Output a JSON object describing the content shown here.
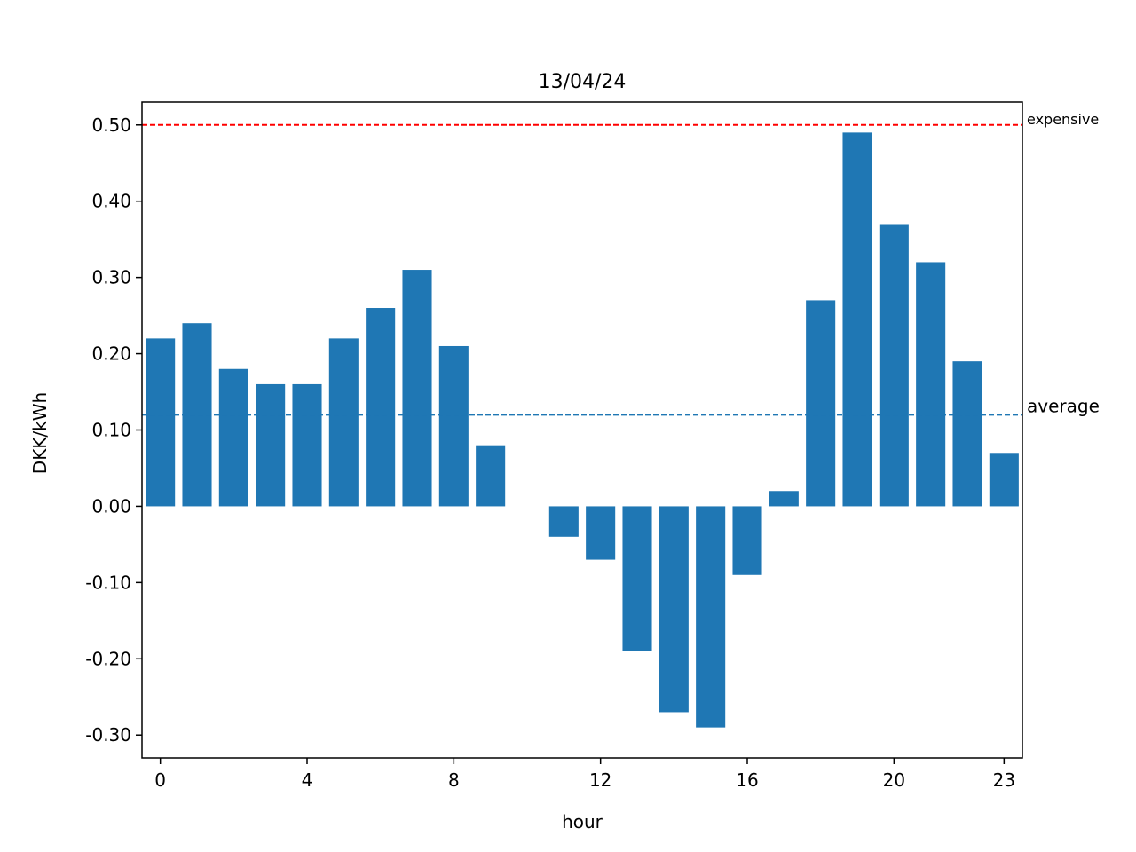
{
  "chart_data": {
    "type": "bar",
    "title": "13/04/24",
    "xlabel": "hour",
    "ylabel": "DKK/kWh",
    "x": [
      0,
      1,
      2,
      3,
      4,
      5,
      6,
      7,
      8,
      9,
      10,
      11,
      12,
      13,
      14,
      15,
      16,
      17,
      18,
      19,
      20,
      21,
      22,
      23
    ],
    "values": [
      0.22,
      0.24,
      0.18,
      0.16,
      0.16,
      0.22,
      0.26,
      0.31,
      0.21,
      0.08,
      0.0,
      -0.04,
      -0.07,
      -0.19,
      -0.27,
      -0.29,
      -0.09,
      0.02,
      0.27,
      0.49,
      0.37,
      0.32,
      0.19,
      0.07
    ],
    "xticks": [
      "0",
      "4",
      "8",
      "12",
      "16",
      "20",
      "23"
    ],
    "yticks": [
      "0.50",
      "0.40",
      "0.30",
      "0.20",
      "0.10",
      "0.00",
      "-0.10",
      "-0.20",
      "-0.30"
    ],
    "ylim": [
      -0.33,
      0.53
    ],
    "xlim": [
      -0.5,
      23.5
    ],
    "bar_color": "#1f77b4",
    "reference_lines": [
      {
        "label": "expensive",
        "value": 0.5,
        "color": "#ff0000",
        "style": "dashed"
      },
      {
        "label": "average",
        "value": 0.12,
        "color": "#1f77b4",
        "style": "dashed"
      }
    ],
    "grid": false
  }
}
